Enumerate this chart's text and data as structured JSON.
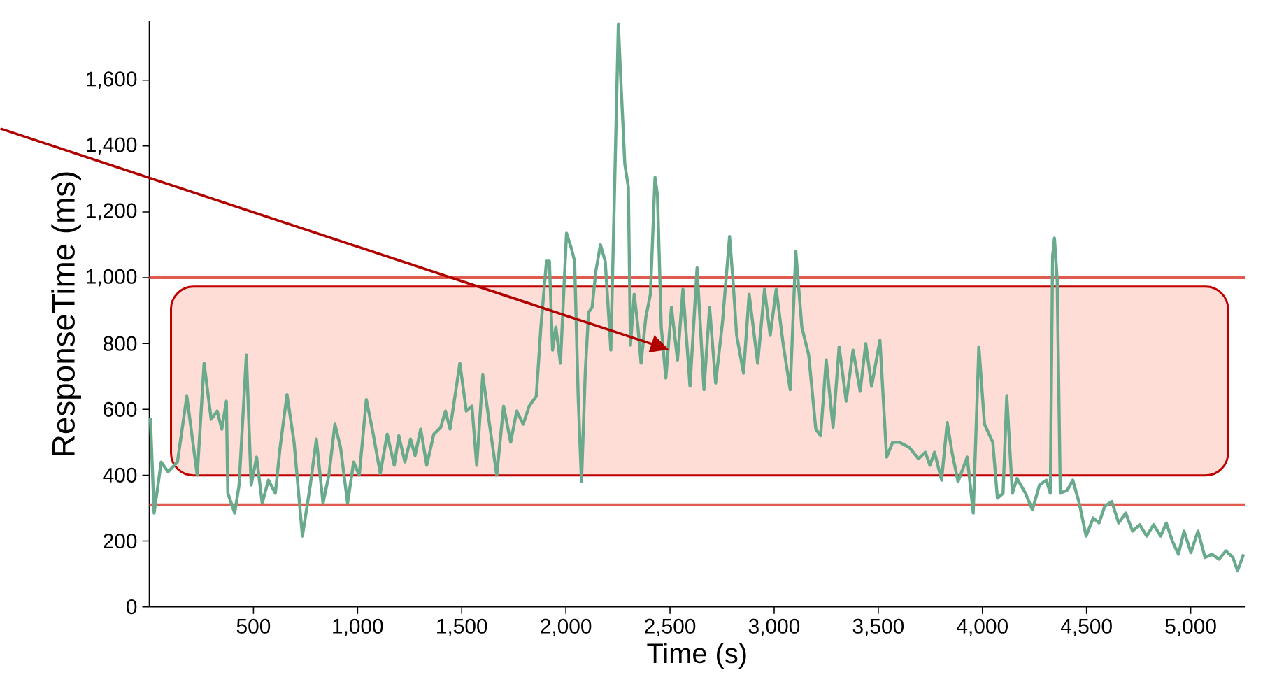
{
  "chart_data": {
    "type": "line",
    "xlabel": "Time (s)",
    "ylabel": "ResponseTime (ms)",
    "xlim": [
      0,
      5260
    ],
    "ylim": [
      0,
      1780
    ],
    "xticks": [
      500,
      {
        "value": 1000,
        "label": "1,000"
      },
      {
        "value": 1500,
        "label": "1,500"
      },
      {
        "value": 2000,
        "label": "2,000"
      },
      {
        "value": 2500,
        "label": "2,500"
      },
      {
        "value": 3000,
        "label": "3,000"
      },
      {
        "value": 3500,
        "label": "3,500"
      },
      {
        "value": 4000,
        "label": "4,000"
      },
      {
        "value": 4500,
        "label": "4,500"
      },
      {
        "value": 5000,
        "label": "5,000"
      }
    ],
    "yticks": [
      0,
      200,
      400,
      600,
      800,
      {
        "value": 1000,
        "label": "1,000"
      },
      {
        "value": 1200,
        "label": "1,200"
      },
      {
        "value": 1400,
        "label": "1,400"
      },
      {
        "value": 1600,
        "label": "1,600"
      }
    ],
    "x": [
      5,
      23,
      57,
      90,
      135,
      180,
      230,
      263,
      297,
      326,
      348,
      370,
      377,
      410,
      431,
      466,
      489,
      515,
      542,
      572,
      605,
      628,
      661,
      695,
      735,
      773,
      802,
      834,
      862,
      891,
      918,
      952,
      981,
      1008,
      1042,
      1075,
      1109,
      1142,
      1176,
      1198,
      1227,
      1254,
      1276,
      1303,
      1332,
      1366,
      1399,
      1422,
      1444,
      1491,
      1522,
      1549,
      1572,
      1601,
      1630,
      1668,
      1701,
      1735,
      1764,
      1795,
      1824,
      1858,
      1880,
      1907,
      1921,
      1936,
      1952,
      1974,
      2003,
      2026,
      2042,
      2059,
      2075,
      2093,
      2109,
      2126,
      2144,
      2166,
      2189,
      2216,
      2234,
      2252,
      2265,
      2283,
      2300,
      2310,
      2328,
      2346,
      2361,
      2384,
      2406,
      2428,
      2440,
      2458,
      2480,
      2507,
      2536,
      2562,
      2596,
      2630,
      2663,
      2690,
      2719,
      2752,
      2786,
      2802,
      2820,
      2853,
      2880,
      2921,
      2954,
      2981,
      3010,
      3044,
      3077,
      3104,
      3133,
      3166,
      3200,
      3223,
      3250,
      3283,
      3312,
      3346,
      3379,
      3413,
      3440,
      3468,
      3508,
      3540,
      3569,
      3602,
      3648,
      3693,
      3726,
      3748,
      3770,
      3804,
      3831,
      3854,
      3883,
      3927,
      3956,
      3983,
      4010,
      4050,
      4072,
      4099,
      4117,
      4144,
      4166,
      4207,
      4240,
      4274,
      4307,
      4326,
      4337,
      4346,
      4359,
      4374,
      4408,
      4434,
      4465,
      4498,
      4532,
      4560,
      4587,
      4621,
      4654,
      4688,
      4721,
      4755,
      4789,
      4822,
      4856,
      4883,
      4912,
      4941,
      4968,
      5001,
      5035,
      5069,
      5102,
      5136,
      5169,
      5203,
      5225,
      5254
    ],
    "series": [
      {
        "color": "#6aaa8c",
        "values": [
          575,
          285,
          440,
          410,
          440,
          640,
          400,
          740,
          570,
          595,
          540,
          625,
          345,
          285,
          370,
          765,
          370,
          455,
          315,
          385,
          345,
          485,
          645,
          500,
          215,
          370,
          510,
          315,
          400,
          555,
          485,
          315,
          440,
          400,
          630,
          525,
          405,
          525,
          430,
          520,
          440,
          510,
          460,
          540,
          430,
          525,
          545,
          595,
          540,
          740,
          595,
          610,
          430,
          705,
          570,
          400,
          610,
          500,
          595,
          555,
          610,
          640,
          850,
          1050,
          1050,
          780,
          850,
          740,
          1135,
          1090,
          1050,
          640,
          380,
          710,
          895,
          910,
          1020,
          1100,
          1050,
          780,
          1275,
          1770,
          1585,
          1345,
          1275,
          795,
          950,
          850,
          740,
          880,
          950,
          1305,
          1250,
          850,
          695,
          910,
          750,
          965,
          670,
          1030,
          660,
          910,
          680,
          865,
          1125,
          995,
          825,
          710,
          950,
          740,
          965,
          825,
          965,
          795,
          660,
          1080,
          850,
          765,
          540,
          520,
          750,
          545,
          790,
          625,
          780,
          655,
          800,
          670,
          810,
          455,
          500,
          500,
          485,
          450,
          470,
          430,
          470,
          385,
          560,
          470,
          380,
          455,
          285,
          790,
          555,
          500,
          330,
          345,
          640,
          345,
          390,
          345,
          295,
          370,
          385,
          345,
          1065,
          1120,
          995,
          345,
          355,
          385,
          315,
          215,
          270,
          255,
          305,
          320,
          255,
          285,
          230,
          250,
          215,
          250,
          215,
          255,
          200,
          160,
          230,
          165,
          230,
          150,
          160,
          145,
          170,
          150,
          110,
          160
        ]
      }
    ],
    "ref_lines": [
      {
        "axis": "y",
        "value": 1000,
        "color": "#e05a4f"
      },
      {
        "axis": "y",
        "value": 310,
        "color": "#e05a4f"
      }
    ]
  }
}
